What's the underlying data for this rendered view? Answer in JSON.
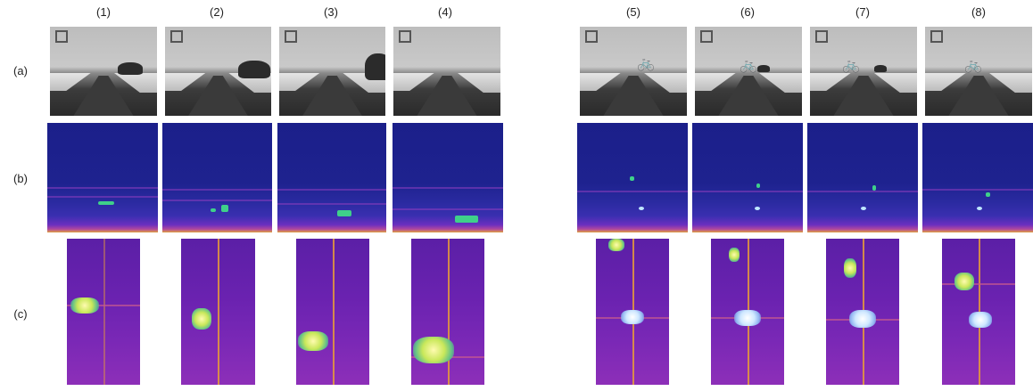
{
  "column_labels": [
    "(1)",
    "(2)",
    "(3)",
    "(4)",
    "(5)",
    "(6)",
    "(7)",
    "(8)"
  ],
  "row_labels": [
    "(a)",
    "(b)",
    "(c)"
  ],
  "colors": {
    "range_map_background": "#1e228f",
    "doppler_map_background": "#6a22b0",
    "target_highlight": "#3fd08a",
    "strong_return": "#bfe8ff",
    "vertical_line": "#e69b3a"
  }
}
